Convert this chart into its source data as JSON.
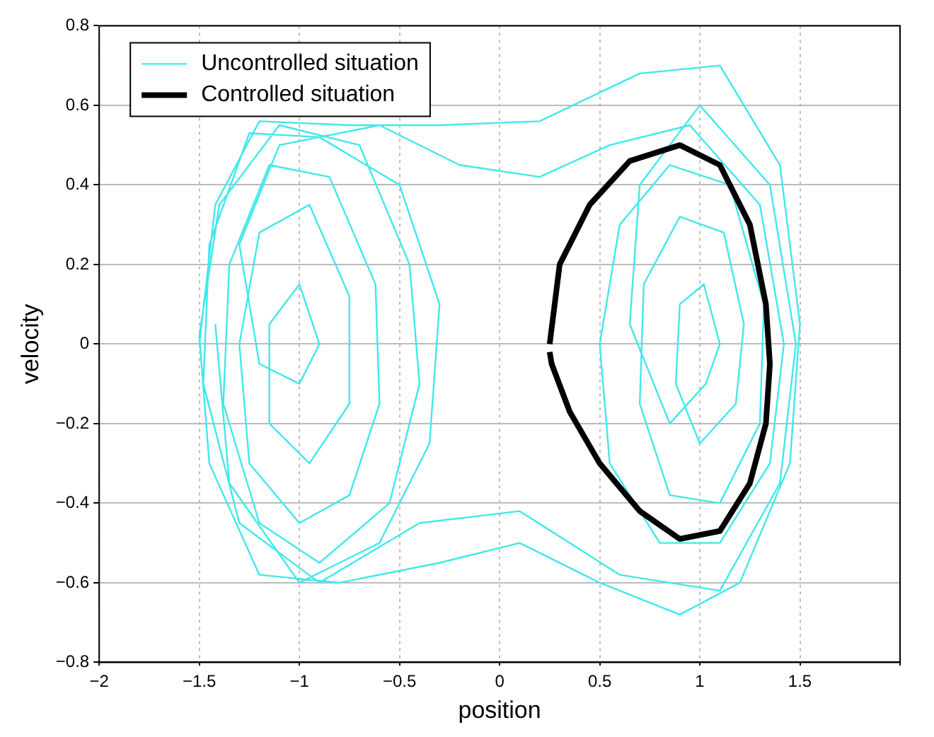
{
  "chart_data": {
    "type": "line",
    "xlabel": "position",
    "ylabel": "velocity",
    "xlim": [
      -2,
      2
    ],
    "ylim": [
      -0.8,
      0.8
    ],
    "xticks": [
      -2,
      -1.5,
      -1,
      -0.5,
      0,
      0.5,
      1,
      1.5,
      {
        "value": 2,
        "label": null
      }
    ],
    "yticks": [
      -0.8,
      -0.6,
      -0.4,
      -0.2,
      0,
      0.2,
      0.4,
      0.6,
      0.8
    ],
    "grid": true,
    "legend": "top left",
    "marker": "none",
    "line_style": "solid",
    "series": [
      {
        "name": "Uncontrolled situation",
        "color": "#40e8ec",
        "x": [
          -1.5,
          -1.42,
          -1.2,
          -0.75,
          -0.3,
          0.2,
          0.7,
          1.1,
          1.4,
          1.5,
          1.45,
          1.2,
          0.9,
          0.5,
          0.1,
          -0.3,
          -0.8,
          -1.2,
          -1.45,
          -1.5,
          -1.4,
          -1.1,
          -0.7,
          -0.45,
          -0.4,
          -0.55,
          -0.9,
          -1.2,
          -1.38,
          -1.35,
          -1.15,
          -0.85,
          -0.62,
          -0.6,
          -0.75,
          -1.0,
          -1.25,
          -1.3,
          -1.2,
          -0.95,
          -0.75,
          -0.75,
          -0.95,
          -1.15,
          -1.15,
          -1.0,
          -0.9,
          -1.0,
          -1.2,
          -1.3,
          -1.1,
          -0.6,
          -0.2,
          0.2,
          0.55,
          0.95,
          1.3,
          1.42,
          1.35,
          1.1,
          0.8,
          0.55,
          0.5,
          0.6,
          0.85,
          1.15,
          1.32,
          1.3,
          1.1,
          0.85,
          0.7,
          0.72,
          0.9,
          1.12,
          1.22,
          1.18,
          1.0,
          0.88,
          0.9,
          1.02,
          1.1,
          1.03,
          0.85,
          0.65,
          0.7,
          1.0,
          1.35,
          1.48,
          1.4,
          1.1,
          0.6,
          0.1,
          -0.4,
          -0.9,
          -1.3,
          -1.48,
          -1.45,
          -1.25,
          -0.9,
          -0.5,
          -0.3,
          -0.35,
          -0.6,
          -1.0,
          -1.35,
          -1.42
        ],
        "values": [
          0.0,
          0.35,
          0.56,
          0.55,
          0.55,
          0.56,
          0.68,
          0.7,
          0.45,
          0.05,
          -0.3,
          -0.6,
          -0.68,
          -0.6,
          -0.5,
          -0.55,
          -0.6,
          -0.58,
          -0.3,
          0.02,
          0.35,
          0.55,
          0.5,
          0.2,
          -0.1,
          -0.4,
          -0.55,
          -0.45,
          -0.15,
          0.2,
          0.45,
          0.42,
          0.15,
          -0.15,
          -0.38,
          -0.45,
          -0.3,
          0.0,
          0.28,
          0.35,
          0.12,
          -0.15,
          -0.3,
          -0.2,
          0.05,
          0.15,
          0.0,
          -0.1,
          -0.05,
          0.25,
          0.5,
          0.55,
          0.45,
          0.42,
          0.5,
          0.55,
          0.35,
          0.0,
          -0.3,
          -0.5,
          -0.5,
          -0.3,
          0.0,
          0.3,
          0.45,
          0.4,
          0.1,
          -0.2,
          -0.4,
          -0.38,
          -0.15,
          0.15,
          0.32,
          0.28,
          0.05,
          -0.15,
          -0.25,
          -0.1,
          0.1,
          0.15,
          0.0,
          -0.1,
          -0.2,
          0.05,
          0.4,
          0.6,
          0.4,
          0.0,
          -0.35,
          -0.62,
          -0.58,
          -0.42,
          -0.45,
          -0.6,
          -0.45,
          -0.1,
          0.25,
          0.53,
          0.52,
          0.4,
          0.1,
          -0.25,
          -0.5,
          -0.6,
          -0.35,
          0.05
        ]
      },
      {
        "name": "Controlled situation",
        "color": "#000000",
        "x": [
          0.25,
          0.3,
          0.45,
          0.65,
          0.9,
          1.1,
          1.25,
          1.33,
          1.35,
          1.33,
          1.25,
          1.1,
          0.9,
          0.7,
          0.5,
          0.35,
          0.26,
          0.25
        ],
        "values": [
          0,
          0.2,
          0.35,
          0.46,
          0.5,
          0.45,
          0.3,
          0.1,
          -0.05,
          -0.2,
          -0.35,
          -0.47,
          -0.49,
          -0.42,
          -0.3,
          -0.17,
          -0.05,
          -0.02
        ]
      }
    ]
  }
}
